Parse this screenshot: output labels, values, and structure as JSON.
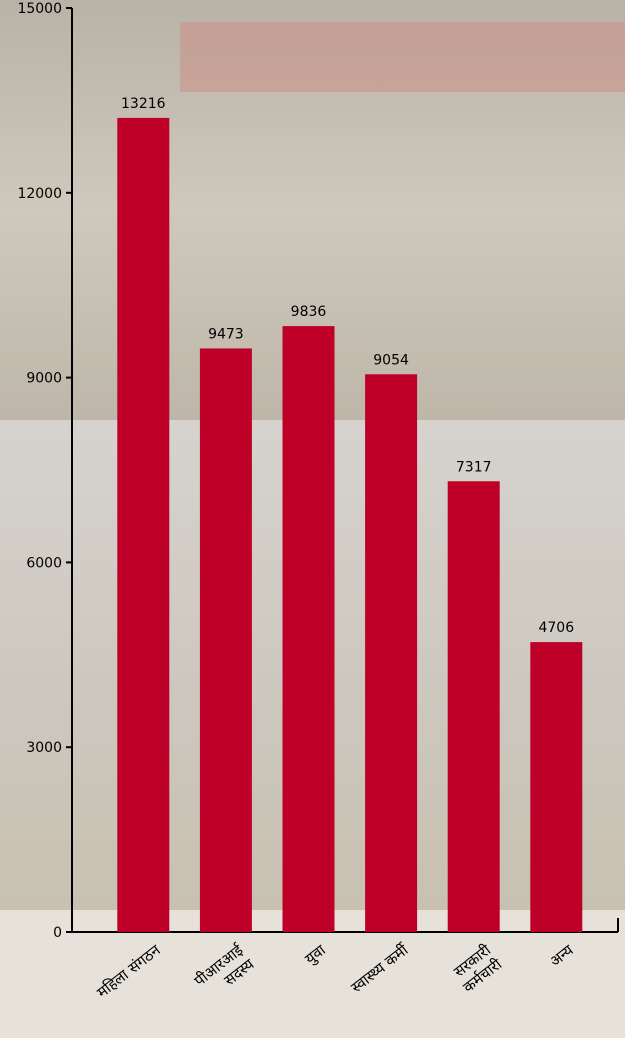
{
  "chart_data": {
    "type": "bar",
    "categories": [
      "महिला संगठन",
      "पीआरआई\nसदस्य",
      "युवा",
      "स्वास्थ्य कर्मी",
      "सरकारी\nकर्मचारी",
      "अन्य"
    ],
    "values": [
      13216,
      9473,
      9836,
      9054,
      7317,
      4706
    ],
    "color": "#be0028",
    "ylim": [
      0,
      15000
    ],
    "yticks": [
      0,
      3000,
      6000,
      9000,
      12000,
      15000
    ]
  }
}
